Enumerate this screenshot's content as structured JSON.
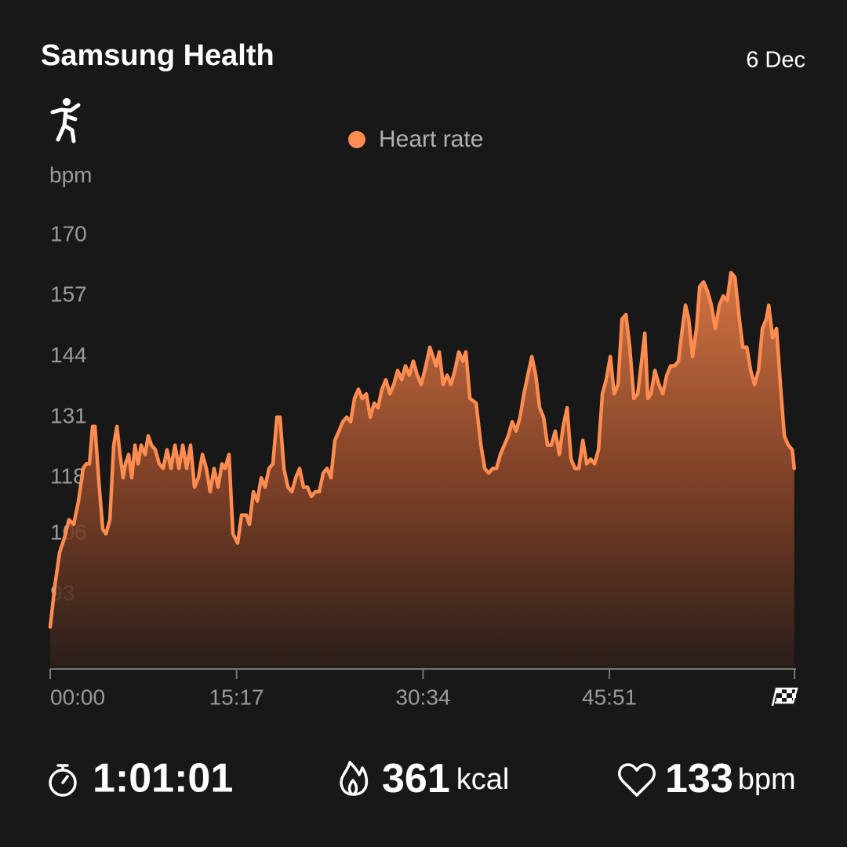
{
  "header": {
    "title": "Samsung Health",
    "date": "6 Dec"
  },
  "chart_data": {
    "type": "area",
    "y_label": "bpm",
    "series": [
      {
        "name": "Heart rate",
        "color": "#ff8c50",
        "x": [
          0,
          0.39,
          0.77,
          1.16,
          1.54,
          1.93,
          2.32,
          2.7,
          2.96,
          3.22,
          3.47,
          3.67,
          3.99,
          4.31,
          4.57,
          4.89,
          5.21,
          5.47,
          5.72,
          5.98,
          6.17,
          6.43,
          6.69,
          6.95,
          7.2,
          7.46,
          7.78,
          8.04,
          8.3,
          8.62,
          8.94,
          9.26,
          9.58,
          9.9,
          10.23,
          10.55,
          10.87,
          11.19,
          11.51,
          11.83,
          12.15,
          12.48,
          12.8,
          13.12,
          13.44,
          13.76,
          14.08,
          14.34,
          14.66,
          14.98,
          15.37,
          15.69,
          16.08,
          16.33,
          16.66,
          16.98,
          17.3,
          17.62,
          17.94,
          18.26,
          18.59,
          18.84,
          19.16,
          19.49,
          19.81,
          20.13,
          20.45,
          20.77,
          21.09,
          21.41,
          21.74,
          22.06,
          22.38,
          22.7,
          23.02,
          23.34,
          23.67,
          23.99,
          24.31,
          24.63,
          24.95,
          25.27,
          25.59,
          25.92,
          26.24,
          26.56,
          26.88,
          27.2,
          27.52,
          27.85,
          28.17,
          28.49,
          28.81,
          29.13,
          29.45,
          29.77,
          30.1,
          30.42,
          30.8,
          31.13,
          31.38,
          31.64,
          31.9,
          32.22,
          32.54,
          32.86,
          33.18,
          33.5,
          33.83,
          34.08,
          34.41,
          34.92,
          35.31,
          35.63,
          35.95,
          36.27,
          36.59,
          36.91,
          37.23,
          37.56,
          37.88,
          38.2,
          38.52,
          38.84,
          39.16,
          39.49,
          39.81,
          40.13,
          40.45,
          40.77,
          41.09,
          41.41,
          41.74,
          42.06,
          42.38,
          42.7,
          43.02,
          43.34,
          43.67,
          43.99,
          44.31,
          44.63,
          44.95,
          45.27,
          45.59,
          45.92,
          46.24,
          46.56,
          46.88,
          47.2,
          47.52,
          47.85,
          48.17,
          48.49,
          48.75,
          49.0,
          49.26,
          49.58,
          49.9,
          50.23,
          50.55,
          50.87,
          51.19,
          51.51,
          51.83,
          52.09,
          52.35,
          52.67,
          52.99,
          53.25,
          53.57,
          53.89,
          54.21,
          54.53,
          54.86,
          55.18,
          55.5,
          55.82,
          56.14,
          56.46,
          56.78,
          57.11,
          57.43,
          57.75,
          58.07,
          58.39,
          58.71,
          58.91,
          59.23,
          59.55,
          59.87,
          60.19,
          60.51,
          60.84,
          61.0
        ],
        "values": [
          86,
          95,
          102,
          105,
          109,
          108,
          113,
          120,
          121,
          121,
          129,
          129,
          117,
          107,
          106,
          109,
          125,
          129,
          123,
          118,
          121,
          123,
          118,
          125,
          121,
          125,
          123,
          127,
          125,
          124,
          121,
          120,
          124,
          120,
          125,
          120,
          125,
          120,
          125,
          116,
          118,
          123,
          120,
          115,
          120,
          116,
          121,
          120,
          123,
          106,
          104,
          110,
          110,
          108,
          115,
          113,
          118,
          116,
          120,
          121,
          131,
          131,
          120,
          116,
          115,
          118,
          120,
          116,
          116,
          114,
          115,
          115,
          119,
          120,
          118,
          126,
          128,
          130,
          131,
          130,
          135,
          137,
          135,
          136,
          131,
          134,
          133,
          137,
          139,
          136,
          138,
          141,
          139,
          142,
          140,
          143,
          140,
          138,
          142,
          146,
          144,
          142,
          145,
          138,
          140,
          138,
          141,
          145,
          143,
          145,
          135,
          134,
          125,
          120,
          119,
          120,
          120,
          123,
          125,
          127,
          130,
          128,
          131,
          136,
          140,
          144,
          140,
          133,
          131,
          125,
          125,
          128,
          123,
          129,
          133,
          122,
          120,
          120,
          126,
          121,
          122,
          121,
          124,
          136,
          139,
          144,
          136,
          138,
          152,
          153,
          146,
          135,
          136,
          143,
          149,
          135,
          136,
          141,
          138,
          136,
          140,
          142,
          142,
          143,
          150,
          155,
          152,
          144,
          150,
          159,
          160,
          158,
          155,
          150,
          155,
          157,
          156,
          162,
          161,
          153,
          146,
          146,
          141,
          138,
          141,
          150,
          152,
          155,
          148,
          150,
          138,
          127,
          125,
          124,
          120
        ]
      }
    ],
    "xlim": [
      0,
      61.02
    ],
    "xticks": [
      {
        "value": 0,
        "label": "00:00"
      },
      {
        "value": 15.28,
        "label": "15:17"
      },
      {
        "value": 30.57,
        "label": "30:34"
      },
      {
        "value": 45.85,
        "label": "45:51"
      }
    ],
    "ylim": [
      77,
      170
    ],
    "yticks": [
      93,
      106,
      118,
      131,
      144,
      157,
      170
    ],
    "grid": false
  },
  "stats": {
    "duration": "1:01:01",
    "calories": 361,
    "calories_unit": "kcal",
    "avg_heart_rate": 133,
    "heart_rate_unit": "bpm"
  }
}
